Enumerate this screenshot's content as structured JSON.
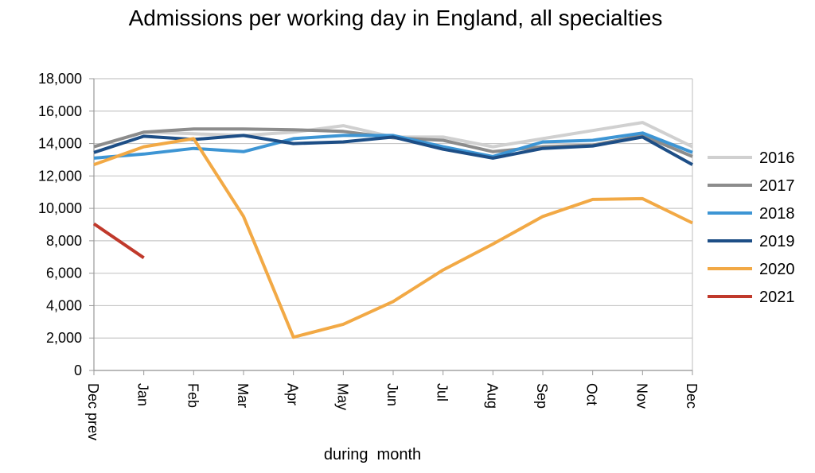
{
  "chart_data": {
    "type": "line",
    "title": "Admissions per working day in England, all specialties",
    "xlabel": "during  month",
    "ylabel": "",
    "categories": [
      "Dec prev",
      "Jan",
      "Feb",
      "Mar",
      "Apr",
      "May",
      "Jun",
      "Jul",
      "Aug",
      "Sep",
      "Oct",
      "Nov",
      "Dec"
    ],
    "ylim": [
      0,
      18000
    ],
    "yticks": [
      0,
      2000,
      4000,
      6000,
      8000,
      10000,
      12000,
      14000,
      16000,
      18000
    ],
    "ytick_labels": [
      "0",
      "2,000",
      "4,000",
      "6,000",
      "8,000",
      "10,000",
      "12,000",
      "14,000",
      "16,000",
      "18,000"
    ],
    "grid": true,
    "legend_position": "right",
    "series": [
      {
        "name": "2016",
        "color": "#d0d0d0",
        "values": [
          13800,
          14700,
          14600,
          14500,
          14700,
          15100,
          14400,
          14400,
          13800,
          14300,
          14800,
          15300,
          13800
        ]
      },
      {
        "name": "2017",
        "color": "#8c8c8c",
        "values": [
          13800,
          14700,
          14900,
          14900,
          14850,
          14750,
          14350,
          14200,
          13500,
          13800,
          13900,
          14500,
          13200
        ]
      },
      {
        "name": "2018",
        "color": "#3d95d4",
        "values": [
          13100,
          13350,
          13700,
          13500,
          14300,
          14500,
          14500,
          13800,
          13200,
          14100,
          14200,
          14650,
          13450
        ]
      },
      {
        "name": "2019",
        "color": "#1d4e86",
        "values": [
          13450,
          14450,
          14250,
          14500,
          14000,
          14100,
          14400,
          13650,
          13100,
          13700,
          13850,
          14400,
          12700
        ]
      },
      {
        "name": "2020",
        "color": "#f2a945",
        "values": [
          12700,
          13800,
          14300,
          9500,
          2050,
          2850,
          4250,
          6200,
          7800,
          9500,
          10550,
          10600,
          9100
        ]
      },
      {
        "name": "2021",
        "color": "#c0392b",
        "values": [
          9050,
          6950,
          null,
          null,
          null,
          null,
          null,
          null,
          null,
          null,
          null,
          null,
          null
        ]
      }
    ]
  }
}
